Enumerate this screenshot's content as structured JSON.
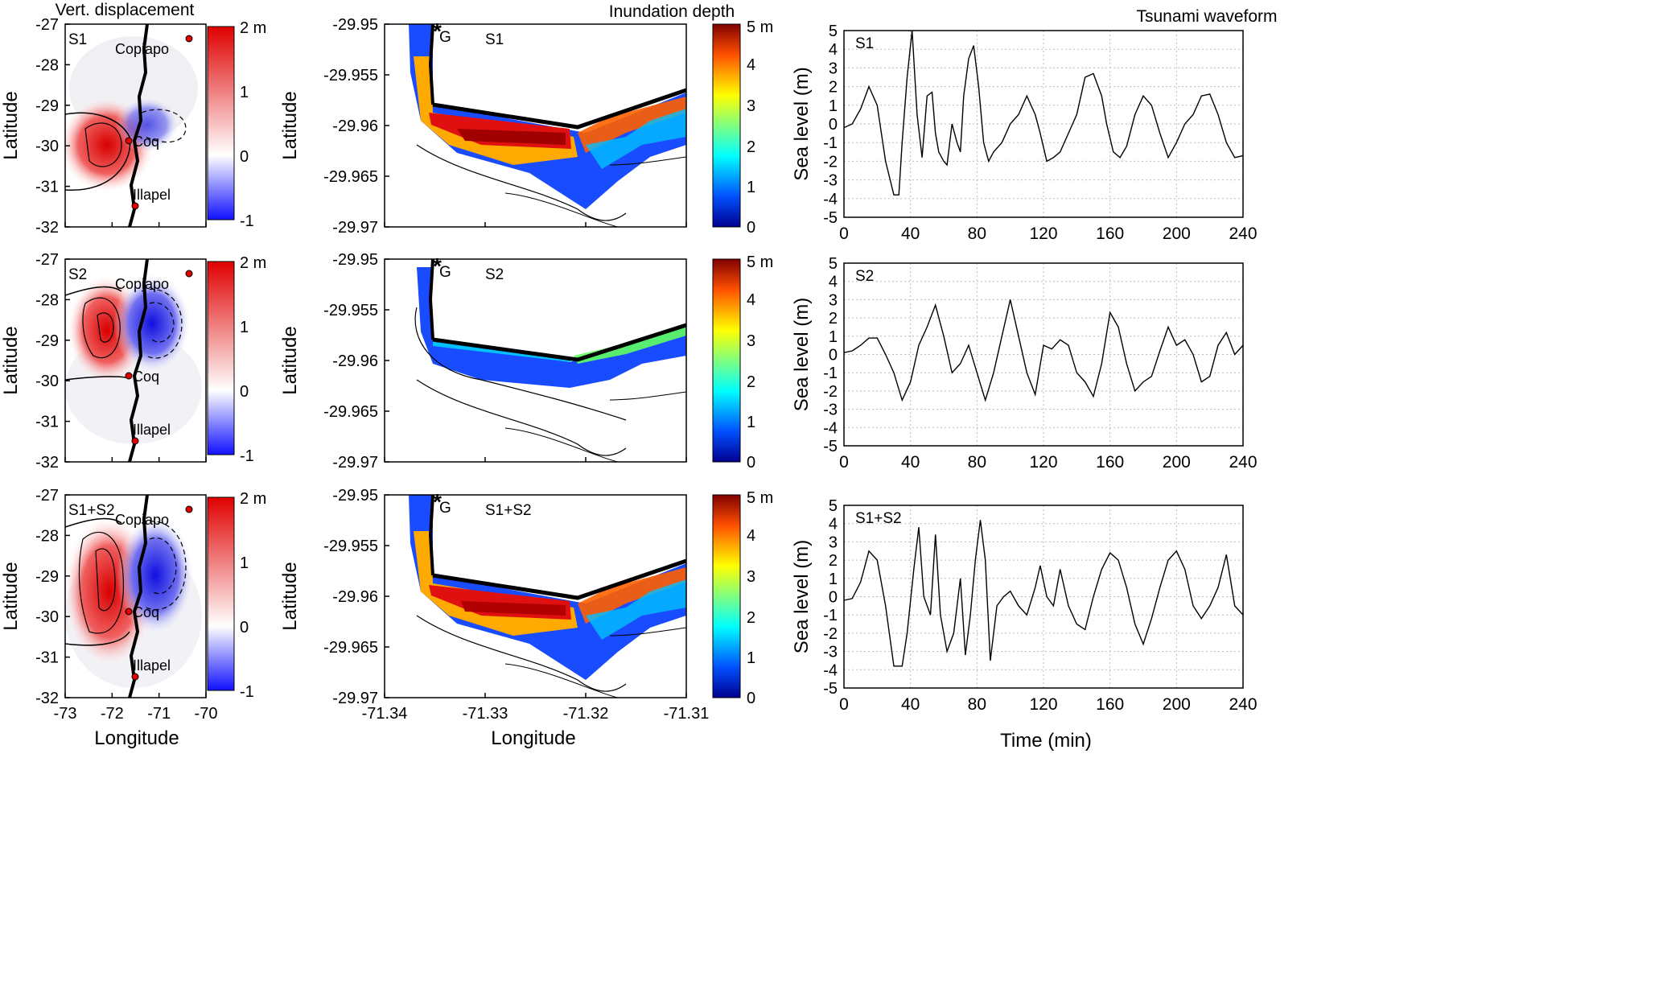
{
  "column_titles": {
    "displacement": "Vert. displacement",
    "inundation": "Inundation depth",
    "waveform": "Tsunami waveform"
  },
  "scenarios": [
    "S1",
    "S2",
    "S1+S2"
  ],
  "displacement": {
    "ylabel": "Latitude",
    "xlabel": "Longitude",
    "yticks": [
      "-27",
      "-28",
      "-29",
      "-30",
      "-31",
      "-32"
    ],
    "xticks": [
      "-73",
      "-72",
      "-71",
      "-70"
    ],
    "cities": [
      "Copiapo",
      "Coq",
      "Illapel"
    ],
    "colorbar_ticks": [
      "2 m",
      "1",
      "0",
      "-1"
    ],
    "colormap": [
      "#1010ff",
      "#ffffff",
      "#e00000"
    ]
  },
  "inundation": {
    "ylabel": "Latitude",
    "xlabel": "Longitude",
    "yticks": [
      "-29.95",
      "-29.955",
      "-29.96",
      "-29.965",
      "-29.97"
    ],
    "xticks": [
      "-71.34",
      "-71.33",
      "-71.32",
      "-71.31"
    ],
    "gauge_label": "G",
    "colorbar_ticks": [
      "5 m",
      "4",
      "3",
      "2",
      "1",
      "0"
    ],
    "colormap": [
      "#00008f",
      "#0050ff",
      "#00ffff",
      "#80ff80",
      "#ffff00",
      "#ff5000",
      "#800000"
    ]
  },
  "chart_data": [
    {
      "type": "line",
      "title": "Tsunami waveform",
      "label": "S1",
      "xlabel": "",
      "ylabel": "Sea level (m)",
      "xlim": [
        0,
        240
      ],
      "ylim": [
        -5,
        5
      ],
      "grid": true,
      "xticks": [
        0,
        40,
        80,
        120,
        160,
        200,
        240
      ],
      "yticks": [
        -5,
        -4,
        -3,
        -2,
        -1,
        0,
        1,
        2,
        3,
        4,
        5
      ],
      "x": [
        0,
        5,
        10,
        15,
        20,
        25,
        30,
        33,
        35,
        38,
        41,
        44,
        47,
        50,
        53,
        55,
        57,
        60,
        62,
        65,
        68,
        70,
        72,
        75,
        78,
        81,
        84,
        87,
        90,
        95,
        100,
        105,
        110,
        115,
        118,
        122,
        126,
        130,
        135,
        140,
        145,
        150,
        155,
        158,
        162,
        166,
        170,
        175,
        180,
        185,
        190,
        195,
        200,
        205,
        210,
        215,
        220,
        225,
        230,
        235,
        240
      ],
      "y": [
        -0.2,
        0.0,
        0.8,
        2.0,
        1.0,
        -2.0,
        -3.8,
        -3.8,
        -1.0,
        2.5,
        5.0,
        0.5,
        -1.8,
        1.5,
        1.7,
        -0.5,
        -1.5,
        -2.0,
        -2.2,
        0.0,
        -1.0,
        -1.5,
        1.5,
        3.5,
        4.2,
        2.0,
        -1.0,
        -2.0,
        -1.5,
        -1.0,
        0.0,
        0.5,
        1.5,
        0.5,
        -0.5,
        -2.0,
        -1.8,
        -1.5,
        -0.5,
        0.5,
        2.5,
        2.7,
        1.5,
        0.0,
        -1.5,
        -1.8,
        -1.2,
        0.5,
        1.5,
        1.0,
        -0.5,
        -1.8,
        -1.0,
        0.0,
        0.5,
        1.5,
        1.6,
        0.5,
        -1.0,
        -1.8,
        -1.7
      ]
    },
    {
      "type": "line",
      "title": "Tsunami waveform",
      "label": "S2",
      "xlabel": "",
      "ylabel": "Sea level (m)",
      "xlim": [
        0,
        240
      ],
      "ylim": [
        -5,
        5
      ],
      "grid": true,
      "xticks": [
        0,
        40,
        80,
        120,
        160,
        200,
        240
      ],
      "yticks": [
        -5,
        -4,
        -3,
        -2,
        -1,
        0,
        1,
        2,
        3,
        4,
        5
      ],
      "x": [
        0,
        5,
        10,
        15,
        20,
        25,
        30,
        35,
        40,
        45,
        50,
        55,
        60,
        65,
        70,
        75,
        80,
        85,
        90,
        95,
        100,
        105,
        110,
        115,
        120,
        125,
        130,
        135,
        140,
        145,
        150,
        155,
        160,
        165,
        170,
        175,
        180,
        185,
        190,
        195,
        200,
        205,
        210,
        215,
        220,
        225,
        230,
        235,
        240
      ],
      "y": [
        0.1,
        0.2,
        0.5,
        0.9,
        0.9,
        0.0,
        -1.0,
        -2.5,
        -1.5,
        0.5,
        1.5,
        2.7,
        1.0,
        -1.0,
        -0.5,
        0.5,
        -1.0,
        -2.5,
        -1.0,
        1.0,
        3.0,
        1.0,
        -1.0,
        -2.2,
        0.5,
        0.3,
        0.8,
        0.5,
        -1.0,
        -1.5,
        -2.3,
        -0.5,
        2.3,
        1.5,
        -0.5,
        -2.0,
        -1.5,
        -1.2,
        0.2,
        1.5,
        0.5,
        0.8,
        0.0,
        -1.5,
        -1.2,
        0.5,
        1.2,
        0.0,
        0.5
      ]
    },
    {
      "type": "line",
      "title": "Tsunami waveform",
      "label": "S1+S2",
      "xlabel": "Time (min)",
      "ylabel": "Sea level (m)",
      "xlim": [
        0,
        240
      ],
      "ylim": [
        -5,
        5
      ],
      "grid": true,
      "xticks": [
        0,
        40,
        80,
        120,
        160,
        200,
        240
      ],
      "yticks": [
        -5,
        -4,
        -3,
        -2,
        -1,
        0,
        1,
        2,
        3,
        4,
        5
      ],
      "x": [
        0,
        5,
        10,
        15,
        20,
        25,
        30,
        35,
        38,
        42,
        45,
        48,
        52,
        55,
        58,
        62,
        66,
        70,
        73,
        76,
        79,
        82,
        85,
        88,
        92,
        96,
        100,
        105,
        110,
        115,
        118,
        122,
        126,
        130,
        135,
        140,
        145,
        150,
        155,
        160,
        165,
        170,
        175,
        180,
        185,
        190,
        195,
        200,
        205,
        210,
        215,
        220,
        225,
        230,
        235,
        240
      ],
      "y": [
        -0.2,
        -0.1,
        0.8,
        2.5,
        2.0,
        -0.5,
        -3.8,
        -3.8,
        -2.0,
        1.5,
        3.8,
        0.0,
        -1.0,
        3.4,
        -1.0,
        -3.0,
        -2.0,
        1.0,
        -3.2,
        -1.0,
        2.0,
        4.2,
        2.0,
        -3.5,
        -0.5,
        0.0,
        0.3,
        -0.5,
        -1.0,
        0.5,
        1.7,
        0.0,
        -0.5,
        1.5,
        -0.5,
        -1.5,
        -1.8,
        0.0,
        1.5,
        2.4,
        2.0,
        0.5,
        -1.5,
        -2.6,
        -1.2,
        0.5,
        2.0,
        2.5,
        1.5,
        -0.5,
        -1.2,
        -0.5,
        0.5,
        2.3,
        -0.5,
        -1.0
      ]
    }
  ]
}
